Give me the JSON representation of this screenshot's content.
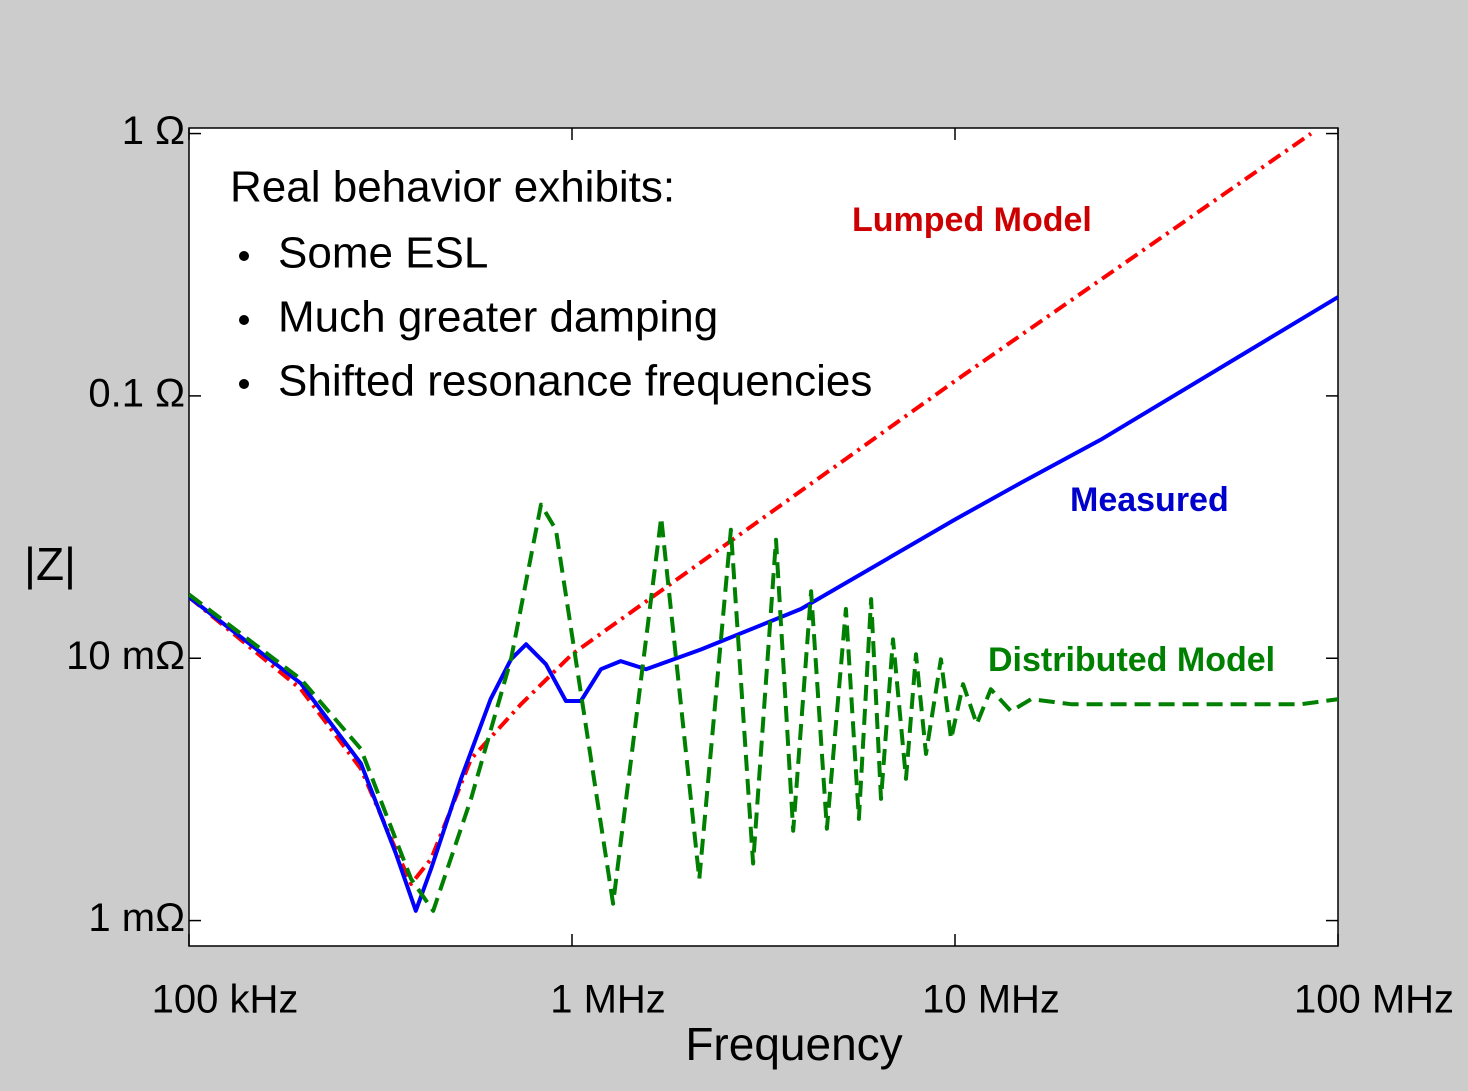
{
  "chart_data": {
    "type": "line",
    "xlabel": "Frequency",
    "ylabel": "|Z|",
    "log_x": true,
    "log_y": true,
    "xlim": [
      100000,
      100000000
    ],
    "ylim": [
      0.0008,
      1.05
    ],
    "xticks": [
      {
        "value": 100000,
        "label": "100 kHz"
      },
      {
        "value": 1000000,
        "label": "1 MHz"
      },
      {
        "value": 10000000,
        "label": "10 MHz"
      },
      {
        "value": 100000000,
        "label": "100 MHz"
      }
    ],
    "yticks": [
      {
        "value": 1,
        "label": "1 Ω"
      },
      {
        "value": 0.1,
        "label": "0.1 Ω"
      },
      {
        "value": 0.01,
        "label": "10 mΩ"
      },
      {
        "value": 0.001,
        "label": "1 mΩ"
      }
    ],
    "annotations": [
      "Real behavior exhibits:",
      "Some ESL",
      "Much greater damping",
      "Shifted resonance frequencies"
    ],
    "series": [
      {
        "name": "Lumped Model",
        "color": "#ff0000",
        "label_color": "#cc0000",
        "x": [
          100000,
          196000,
          281000,
          337000,
          380000,
          429000,
          545000,
          736000,
          1000000,
          10000000,
          85000000
        ],
        "values": [
          0.0171,
          0.00762,
          0.00379,
          0.00205,
          0.00138,
          0.00172,
          0.00413,
          0.00668,
          0.01035,
          0.114,
          1.0
        ]
      },
      {
        "name": "Measured",
        "color": "#0000ff",
        "label_color": "#0000cc",
        "x": [
          100000,
          196000,
          281000,
          347000,
          391000,
          429000,
          513000,
          613000,
          693000,
          759000,
          855000,
          964000,
          1055000,
          1190000,
          1340000,
          1560000,
          2170000,
          3960000,
          10000000,
          14900000,
          24000000,
          100000000
        ],
        "values": [
          0.0171,
          0.00802,
          0.00397,
          0.0018,
          0.00109,
          0.00158,
          0.00347,
          0.00698,
          0.00991,
          0.0113,
          0.00949,
          0.00687,
          0.00687,
          0.00908,
          0.00975,
          0.00908,
          0.0108,
          0.0154,
          0.0338,
          0.0467,
          0.068,
          0.238
        ]
      },
      {
        "name": "Distributed Model",
        "color": "#008000",
        "label_color": "#008000",
        "x": [
          100000,
          196000,
          281000,
          380000,
          434000,
          545000,
          693000,
          830000,
          908000,
          1280000,
          1710000,
          2150000,
          2600000,
          2970000,
          3410000,
          3780000,
          4210000,
          4630000,
          5190000,
          5610000,
          6040000,
          6410000,
          6890000,
          7450000,
          7910000,
          8400000,
          9190000,
          9770000,
          10500000,
          11400000,
          12400000,
          14000000,
          15800000,
          20100000,
          80000000,
          100000000
        ],
        "values": [
          0.0175,
          0.00832,
          0.00451,
          0.00144,
          0.00109,
          0.00291,
          0.00991,
          0.0385,
          0.0309,
          0.00116,
          0.0344,
          0.00144,
          0.0309,
          0.00165,
          0.0283,
          0.0022,
          0.018,
          0.00224,
          0.0154,
          0.00244,
          0.0168,
          0.00291,
          0.0118,
          0.00347,
          0.01035,
          0.00432,
          0.00991,
          0.00492,
          0.00796,
          0.00561,
          0.00762,
          0.00628,
          0.00698,
          0.00668,
          0.00668,
          0.00698
        ]
      }
    ]
  }
}
